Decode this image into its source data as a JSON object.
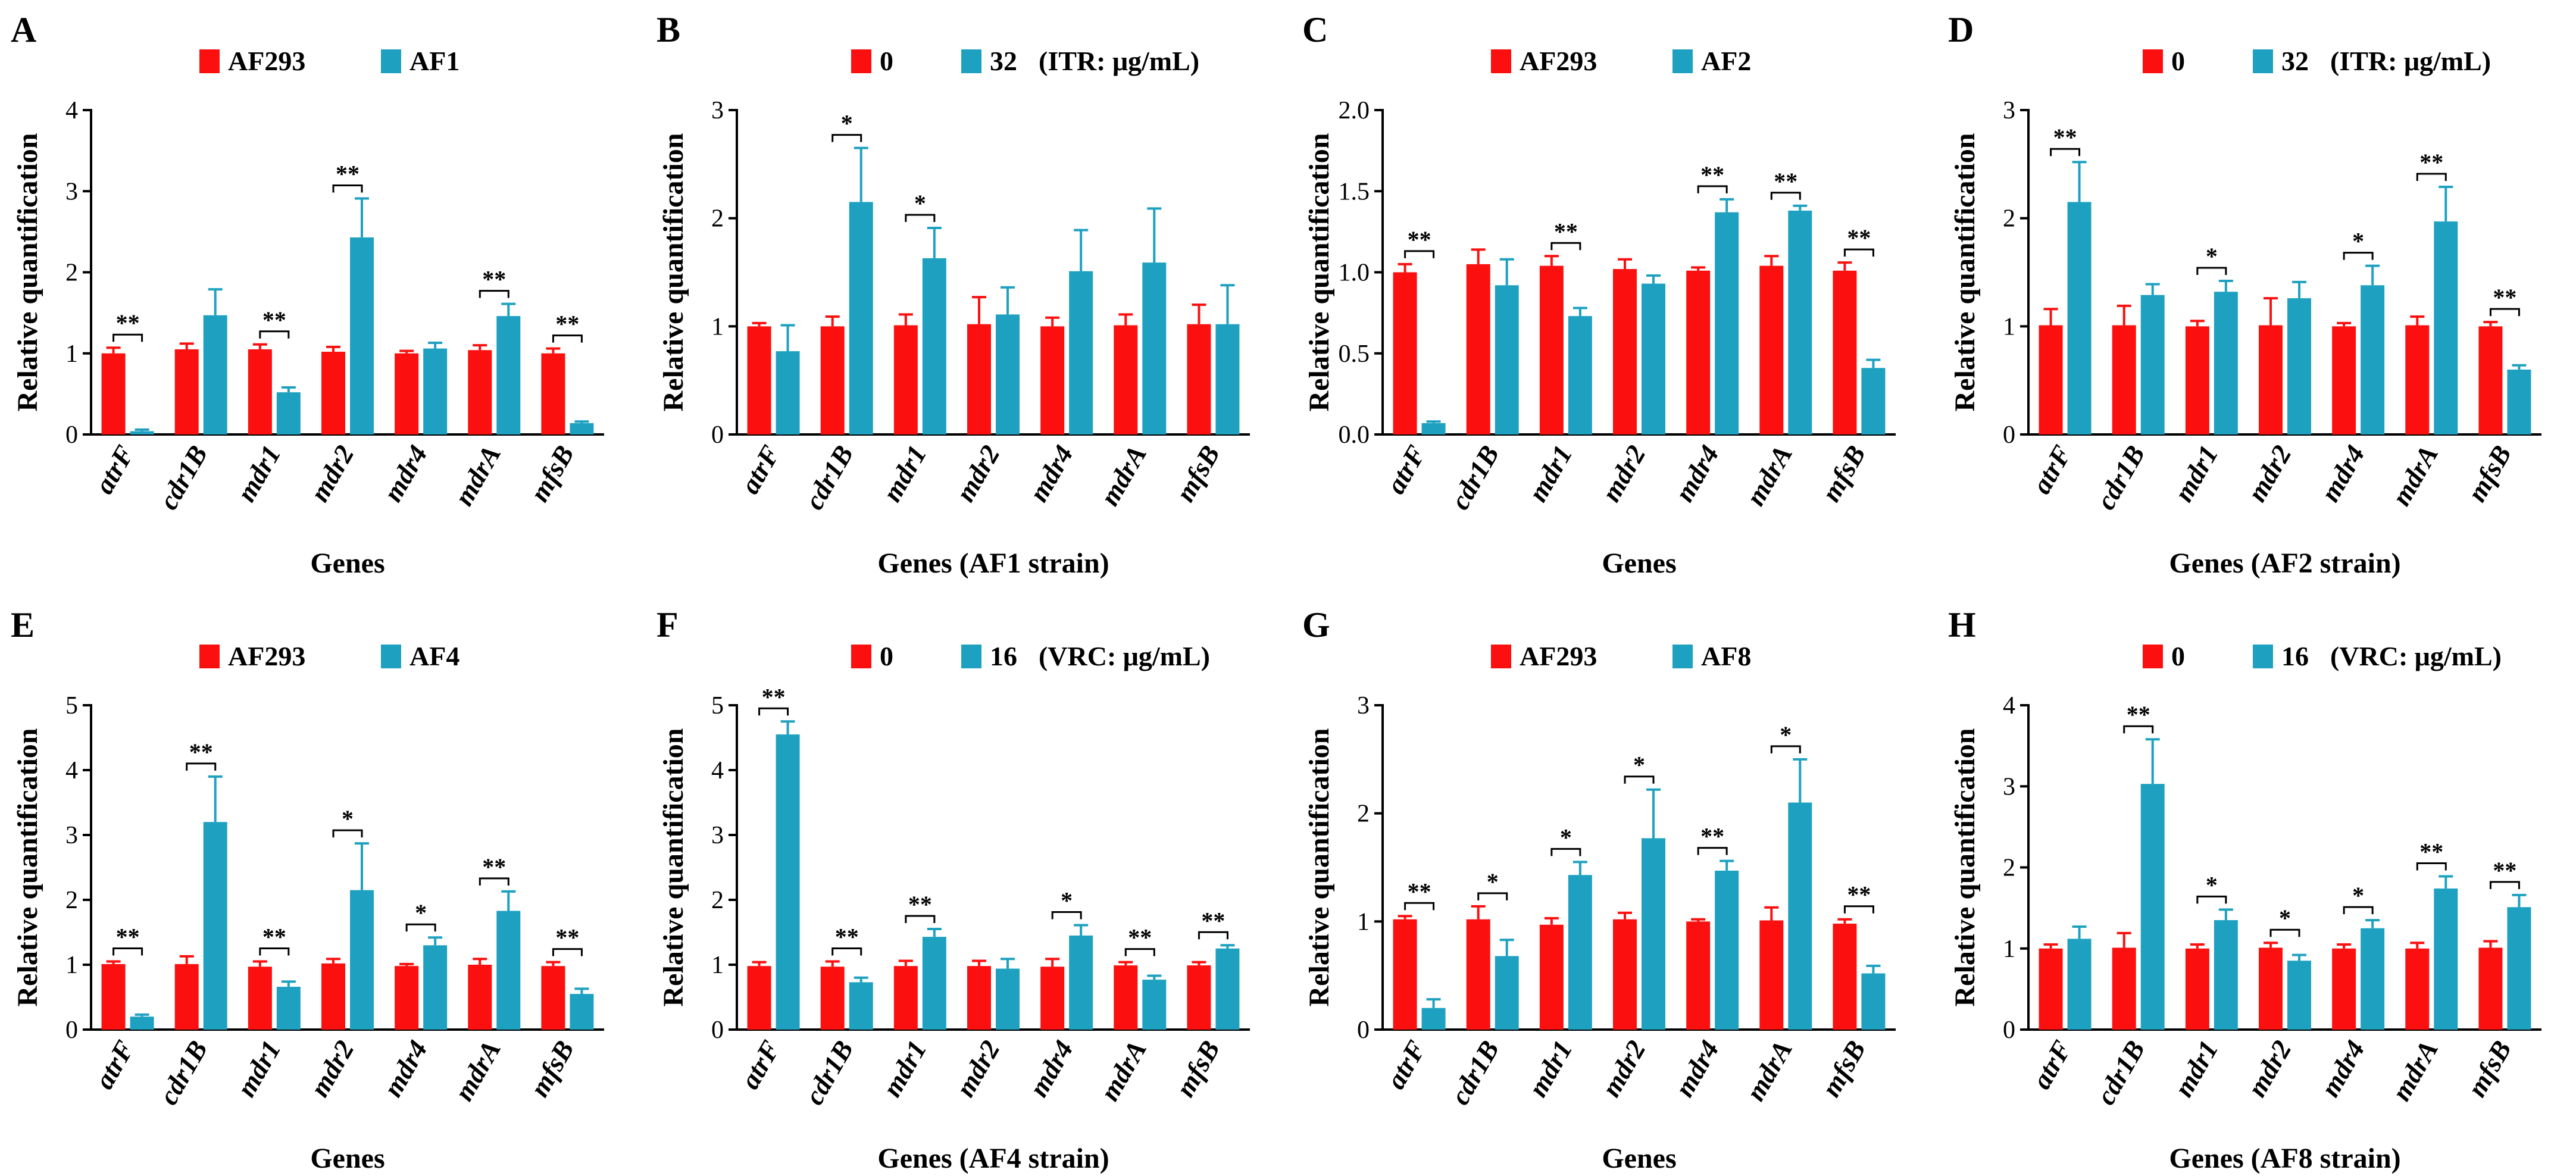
{
  "colors": {
    "control": "#fb0f0f",
    "treated": "#1ea1c0",
    "axis": "#000000"
  },
  "chart_data": [
    {
      "id": "A",
      "type": "bar",
      "panel_label": "A",
      "legend": [
        "AF293",
        "AF1"
      ],
      "legend_suffix": "",
      "xlabel": "Genes",
      "ylabel": "Relative quantification",
      "ylim": [
        0,
        4
      ],
      "yticks": [
        "0",
        "1",
        "2",
        "3",
        "4"
      ],
      "categories": [
        "atrF",
        "cdr1B",
        "mdr1",
        "mdr2",
        "mdr4",
        "mdrA",
        "mfsB"
      ],
      "series": [
        {
          "name": "AF293",
          "values": [
            1.0,
            1.05,
            1.05,
            1.02,
            1.0,
            1.04,
            1.0
          ],
          "errors": [
            0.07,
            0.07,
            0.06,
            0.06,
            0.03,
            0.06,
            0.06
          ]
        },
        {
          "name": "AF1",
          "values": [
            0.04,
            1.47,
            0.52,
            2.43,
            1.06,
            1.46,
            0.14
          ],
          "errors": [
            0.02,
            0.32,
            0.06,
            0.48,
            0.07,
            0.15,
            0.02
          ]
        }
      ],
      "significance": [
        "**",
        "",
        "**",
        "**",
        "",
        "**",
        "**"
      ]
    },
    {
      "id": "B",
      "type": "bar",
      "panel_label": "B",
      "legend": [
        "0",
        "32"
      ],
      "legend_suffix": "(ITR: μg/mL)",
      "xlabel": "Genes (AF1 strain)",
      "ylabel": "Relative quantification",
      "ylim": [
        0,
        3
      ],
      "yticks": [
        "0",
        "1",
        "2",
        "3"
      ],
      "categories": [
        "atrF",
        "cdr1B",
        "mdr1",
        "mdr2",
        "mdr4",
        "mdrA",
        "mfsB"
      ],
      "series": [
        {
          "name": "0",
          "values": [
            1.0,
            1.0,
            1.01,
            1.02,
            1.0,
            1.01,
            1.02
          ],
          "errors": [
            0.03,
            0.09,
            0.1,
            0.25,
            0.08,
            0.1,
            0.18
          ]
        },
        {
          "name": "32",
          "values": [
            0.77,
            2.15,
            1.63,
            1.11,
            1.51,
            1.59,
            1.02
          ],
          "errors": [
            0.24,
            0.5,
            0.28,
            0.25,
            0.38,
            0.5,
            0.36
          ]
        }
      ],
      "significance": [
        "",
        "*",
        "*",
        "",
        "",
        "",
        ""
      ]
    },
    {
      "id": "C",
      "type": "bar",
      "panel_label": "C",
      "legend": [
        "AF293",
        "AF2"
      ],
      "legend_suffix": "",
      "xlabel": "Genes",
      "ylabel": "Relative quantification",
      "ylim": [
        0,
        2.0
      ],
      "yticks": [
        "0.0",
        "0.5",
        "1.0",
        "1.5",
        "2.0"
      ],
      "categories": [
        "atrF",
        "cdr1B",
        "mdr1",
        "mdr2",
        "mdr4",
        "mdrA",
        "mfsB"
      ],
      "series": [
        {
          "name": "AF293",
          "values": [
            1.0,
            1.05,
            1.04,
            1.02,
            1.01,
            1.04,
            1.01
          ],
          "errors": [
            0.05,
            0.09,
            0.06,
            0.06,
            0.02,
            0.06,
            0.05
          ]
        },
        {
          "name": "AF2",
          "values": [
            0.07,
            0.92,
            0.73,
            0.93,
            1.37,
            1.38,
            0.41
          ],
          "errors": [
            0.01,
            0.16,
            0.05,
            0.05,
            0.08,
            0.03,
            0.05
          ]
        }
      ],
      "significance": [
        "**",
        "",
        "**",
        "",
        "**",
        "**",
        "**"
      ]
    },
    {
      "id": "D",
      "type": "bar",
      "panel_label": "D",
      "legend": [
        "0",
        "32"
      ],
      "legend_suffix": "(ITR: μg/mL)",
      "xlabel": "Genes (AF2 strain)",
      "ylabel": "Relative quantification",
      "ylim": [
        0,
        3
      ],
      "yticks": [
        "0",
        "1",
        "2",
        "3"
      ],
      "categories": [
        "atrF",
        "cdr1B",
        "mdr1",
        "mdr2",
        "mdr4",
        "mdrA",
        "mfsB"
      ],
      "series": [
        {
          "name": "0",
          "values": [
            1.01,
            1.01,
            1.0,
            1.01,
            1.0,
            1.01,
            1.0
          ],
          "errors": [
            0.15,
            0.18,
            0.05,
            0.25,
            0.03,
            0.08,
            0.04
          ]
        },
        {
          "name": "32",
          "values": [
            2.15,
            1.29,
            1.32,
            1.26,
            1.38,
            1.97,
            0.6
          ],
          "errors": [
            0.37,
            0.1,
            0.1,
            0.15,
            0.18,
            0.32,
            0.04
          ]
        }
      ],
      "significance": [
        "**",
        "",
        "*",
        "",
        "*",
        "**",
        "**"
      ]
    },
    {
      "id": "E",
      "type": "bar",
      "panel_label": "E",
      "legend": [
        "AF293",
        "AF4"
      ],
      "legend_suffix": "",
      "xlabel": "Genes",
      "ylabel": "Relative quantification",
      "ylim": [
        0,
        5
      ],
      "yticks": [
        "0",
        "1",
        "2",
        "3",
        "4",
        "5"
      ],
      "categories": [
        "atrF",
        "cdr1B",
        "mdr1",
        "mdr2",
        "mdr4",
        "mdrA",
        "mfsB"
      ],
      "series": [
        {
          "name": "AF293",
          "values": [
            1.01,
            1.01,
            0.97,
            1.02,
            0.98,
            1.0,
            0.98
          ],
          "errors": [
            0.04,
            0.12,
            0.08,
            0.07,
            0.03,
            0.09,
            0.06
          ]
        },
        {
          "name": "AF4",
          "values": [
            0.2,
            3.2,
            0.66,
            2.15,
            1.3,
            1.83,
            0.55
          ],
          "errors": [
            0.03,
            0.7,
            0.08,
            0.72,
            0.12,
            0.3,
            0.08
          ]
        }
      ],
      "significance": [
        "**",
        "**",
        "**",
        "*",
        "*",
        "**",
        "**"
      ]
    },
    {
      "id": "F",
      "type": "bar",
      "panel_label": "F",
      "legend": [
        "0",
        "16"
      ],
      "legend_suffix": "(VRC: μg/mL)",
      "xlabel": "Genes (AF4 strain)",
      "ylabel": "Relative quantification",
      "ylim": [
        0,
        5
      ],
      "yticks": [
        "0",
        "1",
        "2",
        "3",
        "4",
        "5"
      ],
      "categories": [
        "atrF",
        "cdr1B",
        "mdr1",
        "mdr2",
        "mdr4",
        "mdrA",
        "mfsB"
      ],
      "series": [
        {
          "name": "0",
          "values": [
            0.98,
            0.97,
            0.98,
            0.98,
            0.97,
            0.99,
            0.99
          ],
          "errors": [
            0.06,
            0.08,
            0.08,
            0.08,
            0.12,
            0.05,
            0.05
          ]
        },
        {
          "name": "16",
          "values": [
            4.55,
            0.73,
            1.43,
            0.94,
            1.45,
            0.77,
            1.25
          ],
          "errors": [
            0.2,
            0.07,
            0.12,
            0.15,
            0.16,
            0.06,
            0.05
          ]
        }
      ],
      "significance": [
        "**",
        "**",
        "**",
        "",
        "*",
        "**",
        "**"
      ]
    },
    {
      "id": "G",
      "type": "bar",
      "panel_label": "G",
      "legend": [
        "AF293",
        "AF8"
      ],
      "legend_suffix": "",
      "xlabel": "Genes",
      "ylabel": "Relative quantification",
      "ylim": [
        0,
        3
      ],
      "yticks": [
        "0",
        "1",
        "2",
        "3"
      ],
      "categories": [
        "atrF",
        "cdr1B",
        "mdr1",
        "mdr2",
        "mdr4",
        "mdrA",
        "mfsB"
      ],
      "series": [
        {
          "name": "AF293",
          "values": [
            1.02,
            1.02,
            0.97,
            1.02,
            1.0,
            1.01,
            0.98
          ],
          "errors": [
            0.03,
            0.12,
            0.06,
            0.06,
            0.02,
            0.12,
            0.04
          ]
        },
        {
          "name": "AF8",
          "values": [
            0.2,
            0.68,
            1.43,
            1.77,
            1.47,
            2.1,
            0.52
          ],
          "errors": [
            0.08,
            0.15,
            0.12,
            0.45,
            0.09,
            0.4,
            0.07
          ]
        }
      ],
      "significance": [
        "**",
        "*",
        "*",
        "*",
        "**",
        "*",
        "**"
      ]
    },
    {
      "id": "H",
      "type": "bar",
      "panel_label": "H",
      "legend": [
        "0",
        "16"
      ],
      "legend_suffix": "(VRC: μg/mL)",
      "xlabel": "Genes (AF8 strain)",
      "ylabel": "Relative quantification",
      "ylim": [
        0,
        4
      ],
      "yticks": [
        "0",
        "1",
        "2",
        "3",
        "4"
      ],
      "categories": [
        "atrF",
        "cdr1B",
        "mdr1",
        "mdr2",
        "mdr4",
        "mdrA",
        "mfsB"
      ],
      "series": [
        {
          "name": "0",
          "values": [
            1.0,
            1.01,
            1.0,
            1.01,
            1.0,
            1.0,
            1.01
          ],
          "errors": [
            0.05,
            0.18,
            0.05,
            0.06,
            0.05,
            0.07,
            0.08
          ]
        },
        {
          "name": "16",
          "values": [
            1.12,
            3.03,
            1.35,
            0.85,
            1.25,
            1.74,
            1.51
          ],
          "errors": [
            0.15,
            0.55,
            0.13,
            0.07,
            0.1,
            0.15,
            0.15
          ]
        }
      ],
      "significance": [
        "",
        "**",
        "*",
        "*",
        "*",
        "**",
        "**"
      ]
    }
  ]
}
